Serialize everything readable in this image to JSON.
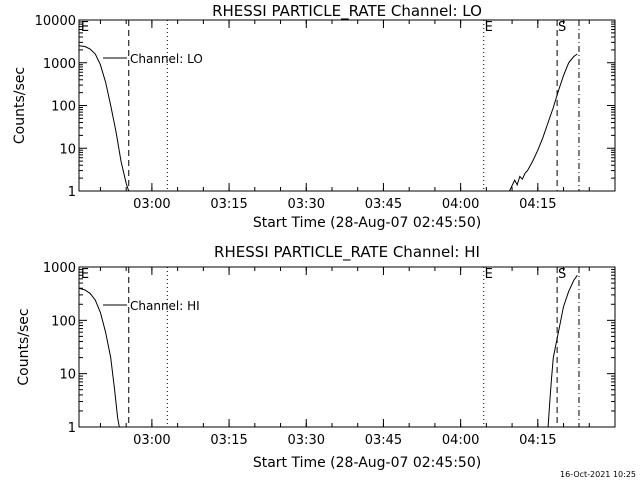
{
  "footer_timestamp": "16-Oct-2021 10:25",
  "chart_data": [
    {
      "type": "line",
      "title": "RHESSI PARTICLE_RATE Channel: LO",
      "xlabel": "Start Time (28-Aug-07 02:45:50)",
      "ylabel": "Counts/sec",
      "y_scale": "log",
      "xlim": [
        "02:45:50",
        "04:30:00"
      ],
      "ylim": [
        1,
        10000
      ],
      "x_ticks": [
        "03:00",
        "03:15",
        "03:30",
        "03:45",
        "04:00",
        "04:15"
      ],
      "y_ticks": [
        "1",
        "10",
        "100",
        "1000",
        "10000"
      ],
      "legend_label": "Channel: LO",
      "marker_labels": [
        "E",
        "E",
        "S"
      ],
      "vlines": [
        {
          "time": "02:55:30",
          "style": "dashed"
        },
        {
          "time": "03:03:00",
          "style": "dotted"
        },
        {
          "time": "04:04:30",
          "style": "dotted",
          "label": "E"
        },
        {
          "time": "04:18:45",
          "style": "dashed",
          "label": "S"
        },
        {
          "time": "04:23:00",
          "style": "dash-dot"
        }
      ],
      "series": [
        {
          "segments": [
            [
              [
                "02:45:50",
                2500
              ],
              [
                "02:47:00",
                2400
              ],
              [
                "02:48:00",
                2100
              ],
              [
                "02:49:00",
                1600
              ],
              [
                "02:50:00",
                900
              ],
              [
                "02:51:00",
                350
              ],
              [
                "02:52:00",
                100
              ],
              [
                "02:53:00",
                25
              ],
              [
                "02:54:00",
                5
              ],
              [
                "02:55:00",
                1.5
              ],
              [
                "02:55:30",
                1
              ]
            ],
            [
              [
                "04:09:30",
                1
              ],
              [
                "04:10:30",
                1.8
              ],
              [
                "04:11:00",
                1.4
              ],
              [
                "04:11:30",
                2.2
              ],
              [
                "04:12:00",
                1.9
              ],
              [
                "04:12:30",
                2.6
              ],
              [
                "04:13:00",
                3
              ],
              [
                "04:14:00",
                5
              ],
              [
                "04:15:00",
                9
              ],
              [
                "04:16:00",
                18
              ],
              [
                "04:17:00",
                40
              ],
              [
                "04:18:00",
                90
              ],
              [
                "04:19:00",
                220
              ],
              [
                "04:20:00",
                500
              ],
              [
                "04:21:00",
                1000
              ],
              [
                "04:22:00",
                1400
              ],
              [
                "04:22:40",
                1600
              ]
            ]
          ]
        }
      ]
    },
    {
      "type": "line",
      "title": "RHESSI PARTICLE_RATE Channel: HI",
      "xlabel": "Start Time (28-Aug-07 02:45:50)",
      "ylabel": "Counts/sec",
      "y_scale": "log",
      "xlim": [
        "02:45:50",
        "04:30:00"
      ],
      "ylim": [
        1,
        1000
      ],
      "x_ticks": [
        "03:00",
        "03:15",
        "03:30",
        "03:45",
        "04:00",
        "04:15"
      ],
      "y_ticks": [
        "1",
        "10",
        "100",
        "1000"
      ],
      "legend_label": "Channel: HI",
      "marker_labels": [
        "E",
        "E",
        "S"
      ],
      "vlines": [
        {
          "time": "02:55:30",
          "style": "dashed"
        },
        {
          "time": "03:03:00",
          "style": "dotted"
        },
        {
          "time": "04:04:30",
          "style": "dotted",
          "label": "E"
        },
        {
          "time": "04:18:45",
          "style": "dashed",
          "label": "S"
        },
        {
          "time": "04:23:00",
          "style": "dash-dot"
        }
      ],
      "series": [
        {
          "segments": [
            [
              [
                "02:45:50",
                400
              ],
              [
                "02:47:00",
                370
              ],
              [
                "02:48:00",
                320
              ],
              [
                "02:49:00",
                240
              ],
              [
                "02:50:00",
                140
              ],
              [
                "02:51:00",
                60
              ],
              [
                "02:52:00",
                20
              ],
              [
                "02:52:45",
                5
              ],
              [
                "02:53:20",
                1.5
              ],
              [
                "02:53:40",
                1
              ]
            ],
            [
              [
                "04:17:00",
                1
              ],
              [
                "04:17:20",
                3
              ],
              [
                "04:17:40",
                8
              ],
              [
                "04:18:00",
                20
              ],
              [
                "04:19:00",
                60
              ],
              [
                "04:20:00",
                180
              ],
              [
                "04:21:00",
                350
              ],
              [
                "04:22:00",
                560
              ],
              [
                "04:22:40",
                700
              ]
            ]
          ]
        }
      ]
    }
  ]
}
